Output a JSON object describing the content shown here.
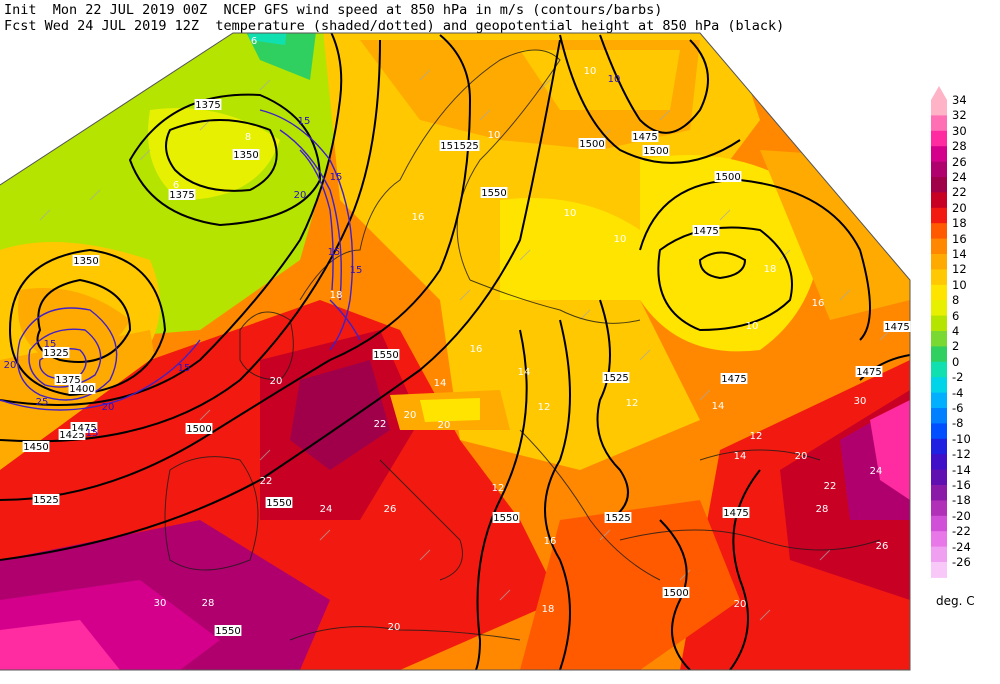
{
  "header": {
    "line1": "Init  Mon 22 JUL 2019 00Z  NCEP GFS wind speed at 850 hPa in m/s (contours/barbs)",
    "line2": "Fcst Wed 24 JUL 2019 12Z  temperature (shaded/dotted) and geopotential height at 850 hPa (black)"
  },
  "legend": {
    "units": "deg. C",
    "levels": [
      {
        "value": "34",
        "color": "#ffb3c6"
      },
      {
        "value": "32",
        "color": "#ff6fb4"
      },
      {
        "value": "30",
        "color": "#ff2ba0"
      },
      {
        "value": "28",
        "color": "#d4008c"
      },
      {
        "value": "26",
        "color": "#b0006e"
      },
      {
        "value": "24",
        "color": "#a0004a"
      },
      {
        "value": "22",
        "color": "#c80024"
      },
      {
        "value": "20",
        "color": "#f21a10"
      },
      {
        "value": "18",
        "color": "#ff5a00"
      },
      {
        "value": "16",
        "color": "#ff8800"
      },
      {
        "value": "14",
        "color": "#ffaa00"
      },
      {
        "value": "12",
        "color": "#ffc800"
      },
      {
        "value": "10",
        "color": "#ffe400"
      },
      {
        "value": "8",
        "color": "#e6f000"
      },
      {
        "value": "6",
        "color": "#b4e400"
      },
      {
        "value": "4",
        "color": "#7ad832"
      },
      {
        "value": "2",
        "color": "#30d060"
      },
      {
        "value": "0",
        "color": "#10e0b0"
      },
      {
        "value": "-2",
        "color": "#00d4e8"
      },
      {
        "value": "-4",
        "color": "#00b0ff"
      },
      {
        "value": "-6",
        "color": "#0080ff"
      },
      {
        "value": "-8",
        "color": "#0050ff"
      },
      {
        "value": "-10",
        "color": "#2020e0"
      },
      {
        "value": "-12",
        "color": "#4010c8"
      },
      {
        "value": "-14",
        "color": "#6010b0"
      },
      {
        "value": "-16",
        "color": "#8a1aa8"
      },
      {
        "value": "-18",
        "color": "#b030b8"
      },
      {
        "value": "-20",
        "color": "#d050d8"
      },
      {
        "value": "-22",
        "color": "#e878e8"
      },
      {
        "value": "-24",
        "color": "#f0a0f0"
      },
      {
        "value": "-26",
        "color": "#f8c8f8"
      }
    ]
  },
  "map": {
    "height_labels": [
      {
        "text": "1375"
      },
      {
        "text": "1350"
      },
      {
        "text": "1375"
      },
      {
        "text": "1350"
      },
      {
        "text": "1325"
      },
      {
        "text": "1375"
      },
      {
        "text": "1400"
      },
      {
        "text": "1425"
      },
      {
        "text": "1450"
      },
      {
        "text": "1475"
      },
      {
        "text": "1500"
      },
      {
        "text": "1525"
      },
      {
        "text": "1550"
      },
      {
        "text": "1550"
      },
      {
        "text": "1550"
      },
      {
        "text": "1550"
      },
      {
        "text": "1525"
      },
      {
        "text": "1500"
      },
      {
        "text": "1475"
      },
      {
        "text": "1475"
      },
      {
        "text": "1500"
      },
      {
        "text": "1500"
      },
      {
        "text": "1475"
      },
      {
        "text": "1475"
      },
      {
        "text": "1525"
      },
      {
        "text": "1525"
      },
      {
        "text": "1500"
      },
      {
        "text": "1475"
      },
      {
        "text": "1550"
      },
      {
        "text": "1525"
      },
      {
        "text": "1475"
      }
    ],
    "wind_labels": [
      {
        "text": "15"
      },
      {
        "text": "15"
      },
      {
        "text": "20"
      },
      {
        "text": "15"
      },
      {
        "text": "15"
      },
      {
        "text": "20"
      },
      {
        "text": "25"
      },
      {
        "text": "15"
      },
      {
        "text": "15"
      },
      {
        "text": "20"
      },
      {
        "text": "15"
      },
      {
        "text": "10"
      }
    ],
    "temp_labels": [
      {
        "text": "6"
      },
      {
        "text": "8"
      },
      {
        "text": "6"
      },
      {
        "text": "10"
      },
      {
        "text": "10"
      },
      {
        "text": "10"
      },
      {
        "text": "10"
      },
      {
        "text": "12"
      },
      {
        "text": "14"
      },
      {
        "text": "16"
      },
      {
        "text": "16"
      },
      {
        "text": "18"
      },
      {
        "text": "20"
      },
      {
        "text": "22"
      },
      {
        "text": "20"
      },
      {
        "text": "20"
      },
      {
        "text": "22"
      },
      {
        "text": "24"
      },
      {
        "text": "26"
      },
      {
        "text": "28"
      },
      {
        "text": "30"
      },
      {
        "text": "20"
      },
      {
        "text": "18"
      },
      {
        "text": "16"
      },
      {
        "text": "14"
      },
      {
        "text": "12"
      },
      {
        "text": "10"
      },
      {
        "text": "12"
      },
      {
        "text": "14"
      },
      {
        "text": "20"
      },
      {
        "text": "22"
      },
      {
        "text": "24"
      },
      {
        "text": "26"
      },
      {
        "text": "28"
      },
      {
        "text": "30"
      },
      {
        "text": "20"
      },
      {
        "text": "16"
      },
      {
        "text": "18"
      },
      {
        "text": "14"
      },
      {
        "text": "12"
      }
    ]
  }
}
